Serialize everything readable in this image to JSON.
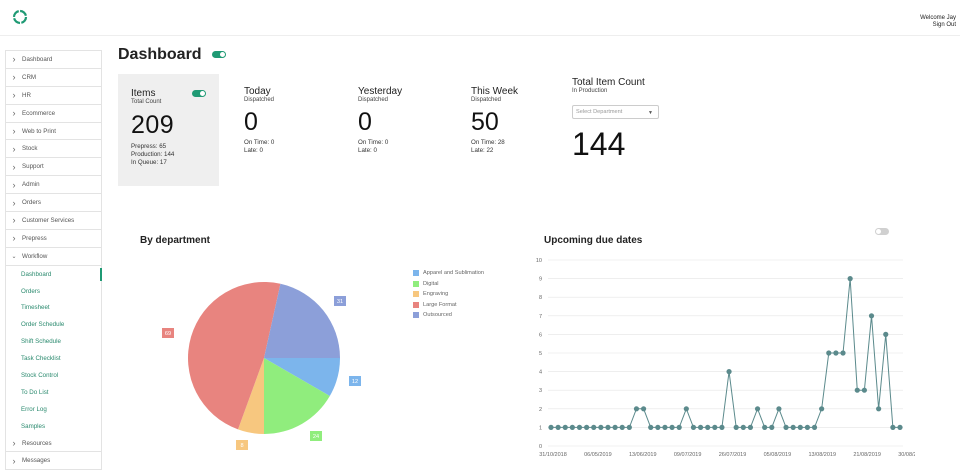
{
  "header": {
    "welcome": "Welcome Jay",
    "sign_out": "Sign Out"
  },
  "sidebar": {
    "items": [
      {
        "label": "Dashboard",
        "type": "collapsed"
      },
      {
        "label": "CRM",
        "type": "collapsed"
      },
      {
        "label": "HR",
        "type": "collapsed"
      },
      {
        "label": "Ecommerce",
        "type": "collapsed"
      },
      {
        "label": "Web to Print",
        "type": "collapsed"
      },
      {
        "label": "Stock",
        "type": "collapsed"
      },
      {
        "label": "Support",
        "type": "collapsed"
      },
      {
        "label": "Admin",
        "type": "collapsed"
      },
      {
        "label": "Orders",
        "type": "collapsed"
      },
      {
        "label": "Customer Services",
        "type": "collapsed"
      },
      {
        "label": "Prepress",
        "type": "collapsed"
      },
      {
        "label": "Workflow",
        "type": "expanded"
      },
      {
        "label": "Dashboard",
        "type": "sub",
        "active": true
      },
      {
        "label": "Orders",
        "type": "sub"
      },
      {
        "label": "Timesheet",
        "type": "sub"
      },
      {
        "label": "Order Schedule",
        "type": "sub"
      },
      {
        "label": "Shift Schedule",
        "type": "sub"
      },
      {
        "label": "Task Checklist",
        "type": "sub"
      },
      {
        "label": "Stock Control",
        "type": "sub"
      },
      {
        "label": "To Do List",
        "type": "sub"
      },
      {
        "label": "Error Log",
        "type": "sub"
      },
      {
        "label": "Samples",
        "type": "sub"
      },
      {
        "label": "Resources",
        "type": "collapsed"
      },
      {
        "label": "Messages",
        "type": "collapsed"
      }
    ]
  },
  "page": {
    "title": "Dashboard"
  },
  "cards": {
    "items": {
      "title": "Items",
      "subtitle": "Total Count",
      "value": "209",
      "prepress": "Prepress: 65",
      "production": "Production: 144",
      "queue": "In Queue: 17"
    },
    "today": {
      "title": "Today",
      "subtitle": "Dispatched",
      "value": "0",
      "on_time": "On Time: 0",
      "late": "Late: 0"
    },
    "yesterday": {
      "title": "Yesterday",
      "subtitle": "Dispatched",
      "value": "0",
      "on_time": "On Time: 0",
      "late": "Late: 0"
    },
    "week": {
      "title": "This Week",
      "subtitle": "Dispatched",
      "value": "50",
      "on_time": "On Time: 28",
      "late": "Late: 22"
    },
    "total": {
      "title": "Total Item Count",
      "subtitle": "In Production",
      "select_placeholder": "Select Department",
      "value": "144"
    }
  },
  "colors": {
    "accent": "#1f9a74",
    "apparel": "#7cb5ec",
    "digital": "#90ed7d",
    "engraving": "#f7c77f",
    "large_format": "#e8847f",
    "outsourced": "#8c9fd9",
    "line": "#5b8a8c"
  },
  "chart_data": [
    {
      "type": "pie",
      "title": "By department",
      "categories": [
        "Apparel and Sublimation",
        "Digital",
        "Engraving",
        "Large Format",
        "Outsourced"
      ],
      "values": [
        12,
        24,
        8,
        69,
        31
      ]
    },
    {
      "type": "line",
      "title": "Upcoming due dates",
      "ylim": [
        0,
        10
      ],
      "yticks": [
        0,
        1,
        2,
        3,
        4,
        5,
        6,
        7,
        8,
        9,
        10
      ],
      "xtick_labels": [
        "31/10/2018",
        "06/05/2019",
        "13/06/2019",
        "09/07/2019",
        "26/07/2019",
        "05/08/2019",
        "13/08/2019",
        "21/08/2019",
        "30/08/2019"
      ],
      "series": [
        {
          "values": [
            1,
            1,
            1,
            1,
            1,
            1,
            1,
            1,
            1,
            1,
            1,
            1,
            2,
            2,
            1,
            1,
            1,
            1,
            1,
            2,
            1,
            1,
            1,
            1,
            1,
            4,
            1,
            1,
            1,
            2,
            1,
            1,
            2,
            1,
            1,
            1,
            1,
            1,
            2,
            5,
            5,
            5,
            9,
            3,
            3,
            7,
            2,
            6,
            1,
            1
          ]
        }
      ]
    }
  ]
}
